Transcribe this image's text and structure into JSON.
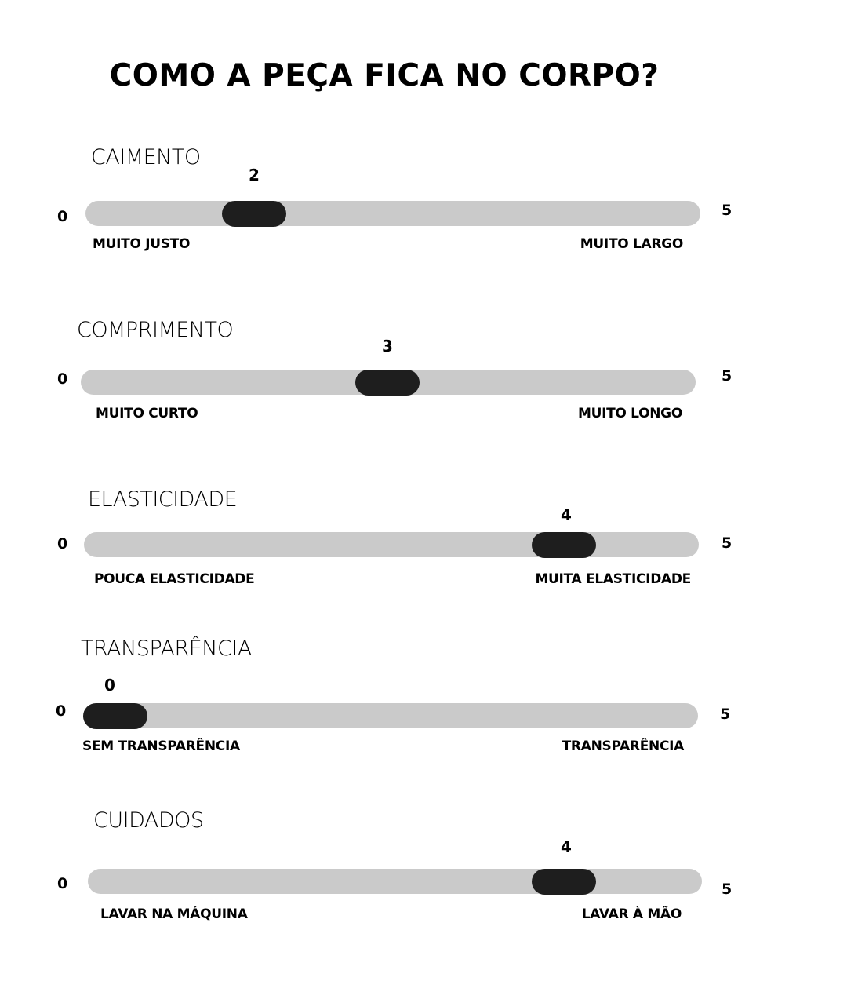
{
  "title": "COMO A PEÇA FICA NO CORPO?",
  "scale": {
    "min": "0",
    "max": "5"
  },
  "colors": {
    "track": "#cacaca",
    "knob": "#1e1e1e"
  },
  "sliders": [
    {
      "title": "CAIMENTO",
      "value": "2",
      "left_label": "MUITO JUSTO",
      "right_label": "MUITO LARGO"
    },
    {
      "title": "COMPRIMENTO",
      "value": "3",
      "left_label": "MUITO CURTO",
      "right_label": "MUITO LONGO"
    },
    {
      "title": "ELASTICIDADE",
      "value": "4",
      "left_label": "POUCA ELASTICIDADE",
      "right_label": "MUITA ELASTICIDADE"
    },
    {
      "title": "TRANSPARÊNCIA",
      "value": "0",
      "left_label": "SEM TRANSPARÊNCIA",
      "right_label": "TRANSPARÊNCIA"
    },
    {
      "title": "CUIDADOS",
      "value": "4",
      "left_label": "LAVAR NA MÁQUINA",
      "right_label": "LAVAR À MÃO"
    }
  ]
}
